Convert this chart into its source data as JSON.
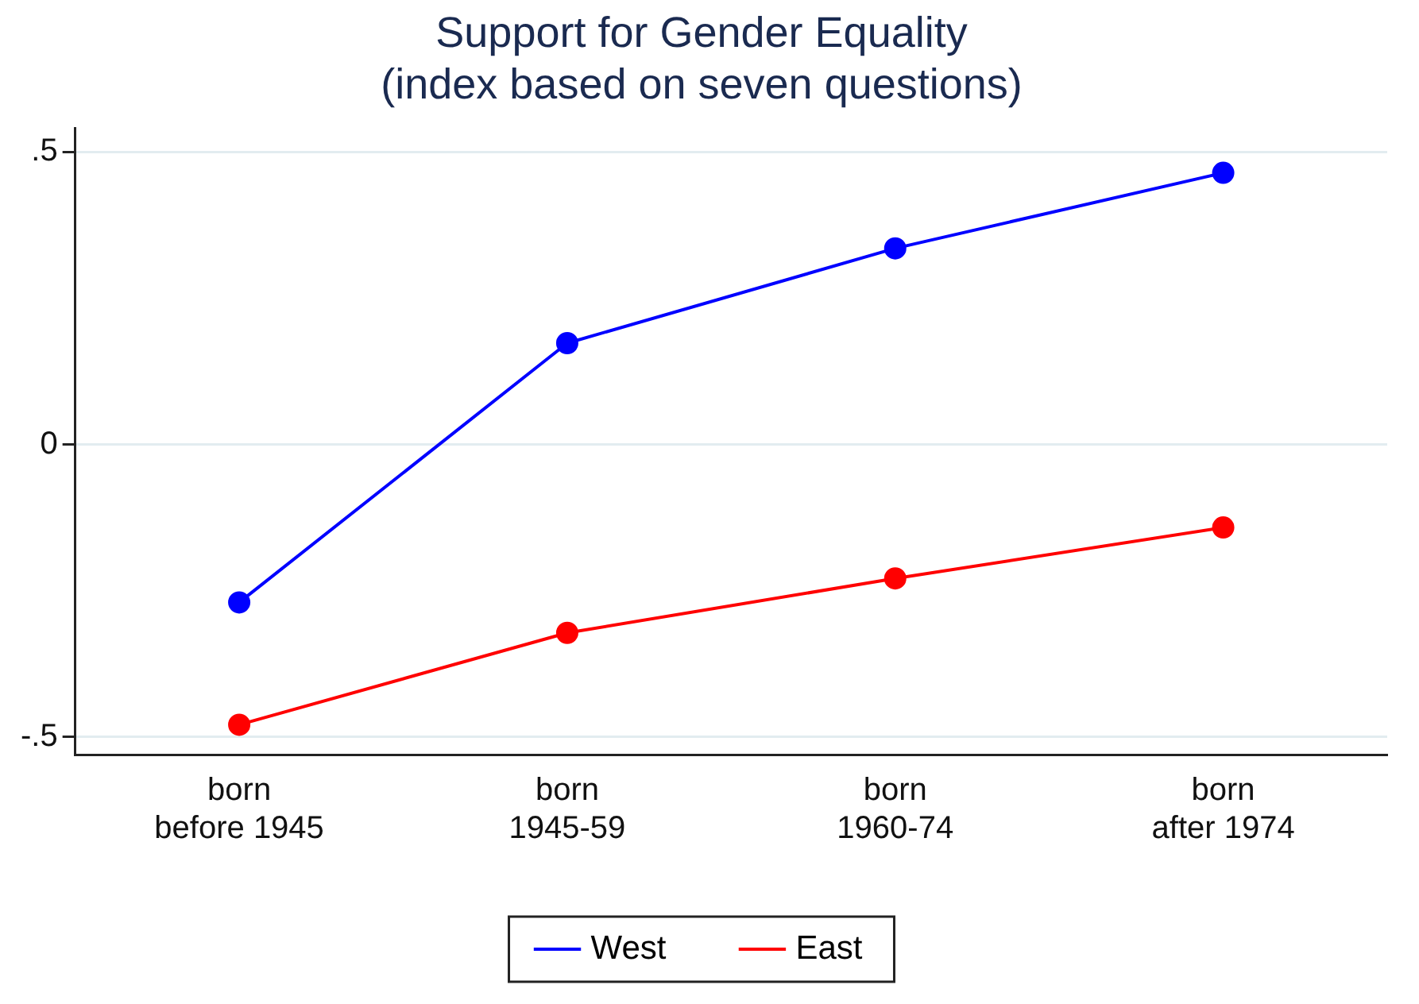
{
  "chart_data": {
    "type": "line",
    "title": "Support for Gender Equality",
    "subtitle": "(index based on seven questions)",
    "categories": [
      "born\nbefore 1945",
      "born\n1945-59",
      "born\n1960-74",
      "born\nafter 1974"
    ],
    "series": [
      {
        "name": "West",
        "color": "#0000ff",
        "values": [
          -0.27,
          0.173,
          0.335,
          0.464
        ]
      },
      {
        "name": "East",
        "color": "#ff0000",
        "values": [
          -0.479,
          -0.322,
          -0.229,
          -0.142
        ]
      }
    ],
    "ylim": [
      -0.53,
      0.54
    ],
    "yticks": [
      {
        "value": -0.5,
        "label": "-.5"
      },
      {
        "value": 0,
        "label": "0"
      },
      {
        "value": 0.5,
        "label": ".5"
      }
    ],
    "grid": "y",
    "legend": "bottom",
    "marker": "circle",
    "line_style": "solid"
  }
}
